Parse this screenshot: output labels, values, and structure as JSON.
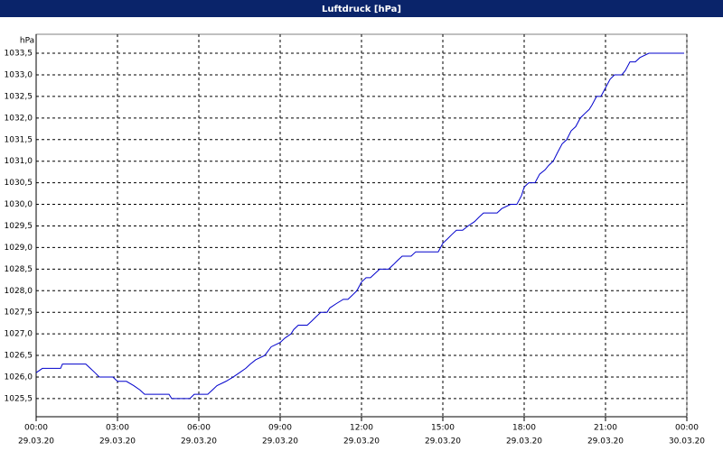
{
  "chart_data": {
    "type": "line",
    "title": "Luftdruck [hPa]",
    "y_unit": "hPa",
    "xlim": [
      0,
      24
    ],
    "ylim": [
      1025.08,
      1033.94
    ],
    "grid": true,
    "xticks": [
      {
        "value": 0,
        "label": "00:00",
        "sublabel": "29.03.20"
      },
      {
        "value": 3,
        "label": "03:00",
        "sublabel": "29.03.20"
      },
      {
        "value": 6,
        "label": "06:00",
        "sublabel": "29.03.20"
      },
      {
        "value": 9,
        "label": "09:00",
        "sublabel": "29.03.20"
      },
      {
        "value": 12,
        "label": "12:00",
        "sublabel": "29.03.20"
      },
      {
        "value": 15,
        "label": "15:00",
        "sublabel": "29.03.20"
      },
      {
        "value": 18,
        "label": "18:00",
        "sublabel": "29.03.20"
      },
      {
        "value": 21,
        "label": "21:00",
        "sublabel": "29.03.20"
      },
      {
        "value": 24,
        "label": "00:00",
        "sublabel": "30.03.20"
      }
    ],
    "yticks": [
      {
        "value": 1025.5,
        "label": "1025,5"
      },
      {
        "value": 1026,
        "label": "1026,0"
      },
      {
        "value": 1026.5,
        "label": "1026,5"
      },
      {
        "value": 1027,
        "label": "1027,0"
      },
      {
        "value": 1027.5,
        "label": "1027,5"
      },
      {
        "value": 1028,
        "label": "1028,0"
      },
      {
        "value": 1028.5,
        "label": "1028,5"
      },
      {
        "value": 1029,
        "label": "1029,0"
      },
      {
        "value": 1029.5,
        "label": "1029,5"
      },
      {
        "value": 1030,
        "label": "1030,0"
      },
      {
        "value": 1030.5,
        "label": "1030,5"
      },
      {
        "value": 1031,
        "label": "1031,0"
      },
      {
        "value": 1031.5,
        "label": "1031,5"
      },
      {
        "value": 1032,
        "label": "1032,0"
      },
      {
        "value": 1032.5,
        "label": "1032,5"
      },
      {
        "value": 1033,
        "label": "1033,0"
      },
      {
        "value": 1033.5,
        "label": "1033,5"
      }
    ],
    "series": [
      {
        "color": "#0000cc",
        "x": [
          0,
          0.23,
          0.9,
          0.97,
          1.83,
          2.0,
          2.17,
          2.33,
          2.83,
          3.0,
          3.33,
          3.6,
          3.83,
          4.0,
          4.9,
          5.0,
          5.67,
          5.83,
          6.33,
          6.5,
          6.67,
          7.0,
          7.27,
          7.5,
          7.73,
          7.9,
          8.1,
          8.43,
          8.67,
          9.0,
          9.17,
          9.4,
          9.5,
          9.67,
          10.0,
          10.17,
          10.33,
          10.5,
          10.73,
          10.83,
          11.07,
          11.33,
          11.5,
          11.67,
          11.83,
          12.0,
          12.17,
          12.33,
          12.5,
          12.67,
          13.0,
          13.17,
          13.33,
          13.5,
          13.83,
          14.0,
          14.83,
          15.0,
          15.17,
          15.33,
          15.5,
          15.73,
          15.93,
          16.17,
          16.33,
          16.5,
          17.0,
          17.17,
          17.5,
          17.73,
          17.9,
          18.0,
          18.17,
          18.4,
          18.57,
          18.77,
          18.9,
          19.07,
          19.23,
          19.4,
          19.57,
          19.73,
          19.9,
          20.07,
          20.23,
          20.4,
          20.5,
          20.67,
          20.83,
          21.0,
          21.17,
          21.33,
          21.6,
          21.73,
          21.9,
          22.1,
          22.27,
          22.6,
          23.9
        ],
        "values": [
          1026.1,
          1026.2,
          1026.2,
          1026.3,
          1026.3,
          1026.2,
          1026.1,
          1026.0,
          1026.0,
          1025.9,
          1025.9,
          1025.8,
          1025.7,
          1025.6,
          1025.6,
          1025.5,
          1025.5,
          1025.6,
          1025.6,
          1025.7,
          1025.8,
          1025.9,
          1026.0,
          1026.1,
          1026.2,
          1026.3,
          1026.4,
          1026.5,
          1026.7,
          1026.8,
          1026.9,
          1027.0,
          1027.1,
          1027.2,
          1027.2,
          1027.3,
          1027.4,
          1027.5,
          1027.5,
          1027.6,
          1027.7,
          1027.8,
          1027.8,
          1027.9,
          1028.0,
          1028.2,
          1028.3,
          1028.3,
          1028.4,
          1028.5,
          1028.5,
          1028.6,
          1028.7,
          1028.8,
          1028.8,
          1028.9,
          1028.9,
          1029.1,
          1029.2,
          1029.3,
          1029.4,
          1029.4,
          1029.5,
          1029.6,
          1029.7,
          1029.8,
          1029.8,
          1029.9,
          1030.0,
          1030.0,
          1030.2,
          1030.4,
          1030.5,
          1030.5,
          1030.7,
          1030.8,
          1030.9,
          1031.0,
          1031.2,
          1031.4,
          1031.5,
          1031.7,
          1031.8,
          1032.0,
          1032.1,
          1032.2,
          1032.3,
          1032.5,
          1032.5,
          1032.7,
          1032.9,
          1033.0,
          1033.0,
          1033.1,
          1033.3,
          1033.3,
          1033.4,
          1033.5,
          1033.5
        ]
      }
    ]
  }
}
